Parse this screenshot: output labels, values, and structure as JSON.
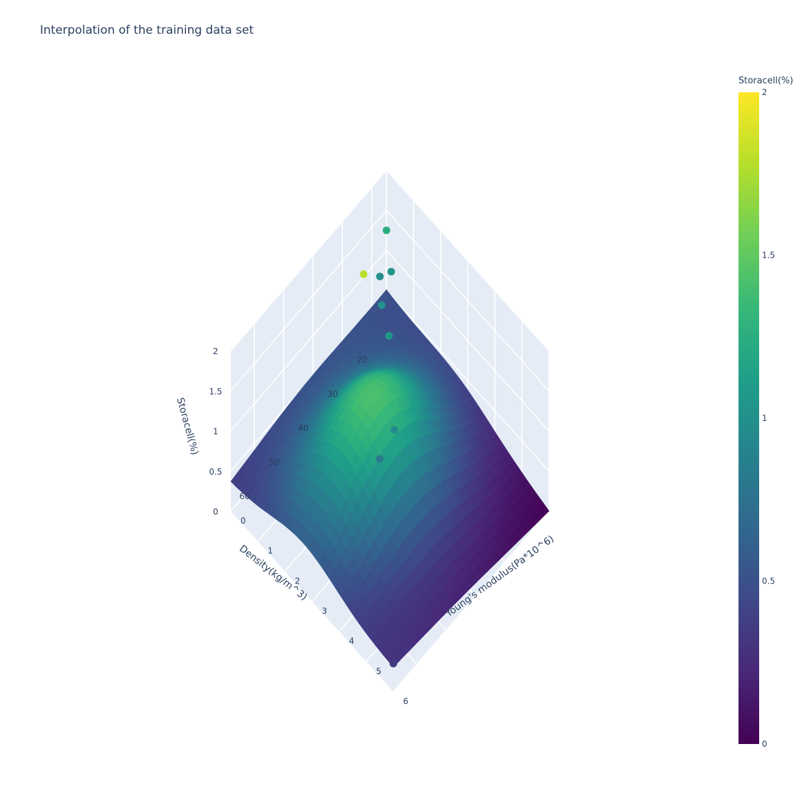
{
  "title": "Interpolation of the training data set",
  "chart_data": {
    "type": "surface3d",
    "title": "Interpolation of the training data set",
    "xlabel": "Young's modulus(Pa*10^6)",
    "ylabel": "Density(kg/m^3)",
    "zlabel": "Storacell(%)",
    "xlim": [
      0,
      6
    ],
    "ylim": [
      15,
      68
    ],
    "zlim": [
      0,
      2
    ],
    "x_ticks": [
      "0",
      "1",
      "2",
      "3",
      "4",
      "5",
      "6"
    ],
    "y_ticks": [
      "20",
      "30",
      "40",
      "50",
      "60"
    ],
    "z_ticks": [
      "0",
      "0.5",
      "1",
      "1.5",
      "2"
    ],
    "colorscale": "Viridis",
    "colorbar": {
      "title": "Storacell(%)",
      "range": [
        0,
        2
      ],
      "ticks": [
        "0",
        "0.5",
        "1",
        "1.5",
        "2"
      ]
    },
    "surface_corners": {
      "x0_ymin": 0.5,
      "x0_ymax": 0.35,
      "x6_ymin": 0.0,
      "x6_ymax": 0.3,
      "peak": 1.25
    },
    "scatter_points": [
      {
        "x": 0.0,
        "y": 15,
        "z": 1.25
      },
      {
        "x": 0.3,
        "y": 20,
        "z": 1.0
      },
      {
        "x": 0.5,
        "y": 18,
        "z": 1.05
      },
      {
        "x": 1.0,
        "y": 32,
        "z": 1.8
      },
      {
        "x": 1.5,
        "y": 28,
        "z": 1.05
      },
      {
        "x": 0.8,
        "y": 24,
        "z": 1.0
      },
      {
        "x": 3.0,
        "y": 40,
        "z": 0.95
      },
      {
        "x": 3.0,
        "y": 45,
        "z": 0.8
      },
      {
        "x": 6.0,
        "y": 68,
        "z": 0.35
      }
    ]
  }
}
